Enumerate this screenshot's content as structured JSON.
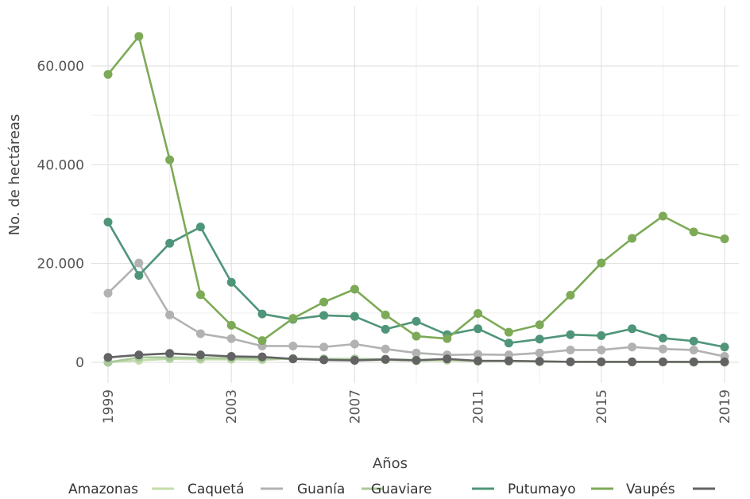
{
  "chart_data": {
    "type": "line",
    "title": "",
    "xlabel": "Años",
    "ylabel": "No. de hectáreas",
    "x": [
      1999,
      2000,
      2001,
      2002,
      2003,
      2004,
      2005,
      2006,
      2007,
      2008,
      2009,
      2010,
      2011,
      2012,
      2013,
      2014,
      2015,
      2016,
      2017,
      2018,
      2019
    ],
    "x_ticks": [
      1999,
      2003,
      2007,
      2011,
      2015,
      2019
    ],
    "x_tick_labels": [
      "1999",
      "2003",
      "2007",
      "2011",
      "2015",
      "2019"
    ],
    "xlim": [
      1999,
      2019
    ],
    "ylim": [
      -1500,
      67000
    ],
    "y_ticks": [
      0,
      20000,
      40000,
      60000
    ],
    "y_tick_labels": [
      "0",
      "20.000",
      "40.000",
      "60.000"
    ],
    "grid": true,
    "legend_position": "bottom",
    "series": [
      {
        "name": "Amazonas",
        "color": "#c5dcaa",
        "values": [
          0,
          400,
          700,
          600,
          600,
          500,
          800,
          600,
          400,
          500,
          300,
          400,
          200,
          200,
          100,
          100,
          50,
          50,
          50,
          0,
          0
        ]
      },
      {
        "name": "Caquetá",
        "color": "#b2b2b2",
        "values": [
          14000,
          20100,
          9600,
          5800,
          4800,
          3300,
          3300,
          3100,
          3700,
          2700,
          1900,
          1500,
          1600,
          1500,
          1900,
          2500,
          2500,
          3100,
          2700,
          2500,
          1200
        ]
      },
      {
        "name": "Guanía",
        "color": "#a7c99b",
        "values": [
          0,
          1000,
          1000,
          900,
          800,
          800,
          700,
          700,
          700,
          600,
          500,
          600,
          300,
          300,
          200,
          100,
          100,
          100,
          100,
          50,
          50
        ]
      },
      {
        "name": "Guaviare",
        "color": "#4f9579",
        "values": [
          28400,
          17600,
          24100,
          27400,
          16200,
          9800,
          8700,
          9500,
          9300,
          6700,
          8300,
          5600,
          6800,
          3900,
          4700,
          5600,
          5400,
          6800,
          4900,
          4300,
          3100
        ]
      },
      {
        "name": "Putumayo",
        "color": "#7daa57",
        "values": [
          58300,
          66000,
          41000,
          13700,
          7500,
          4400,
          8900,
          12200,
          14800,
          9600,
          5300,
          4800,
          9900,
          6100,
          7600,
          13600,
          20100,
          25100,
          29600,
          26400,
          25000
        ]
      },
      {
        "name": "Vaupés",
        "color": "#636363",
        "values": [
          1000,
          1500,
          1800,
          1500,
          1200,
          1100,
          700,
          500,
          400,
          600,
          400,
          700,
          300,
          300,
          200,
          100,
          100,
          100,
          100,
          100,
          100
        ]
      }
    ]
  }
}
